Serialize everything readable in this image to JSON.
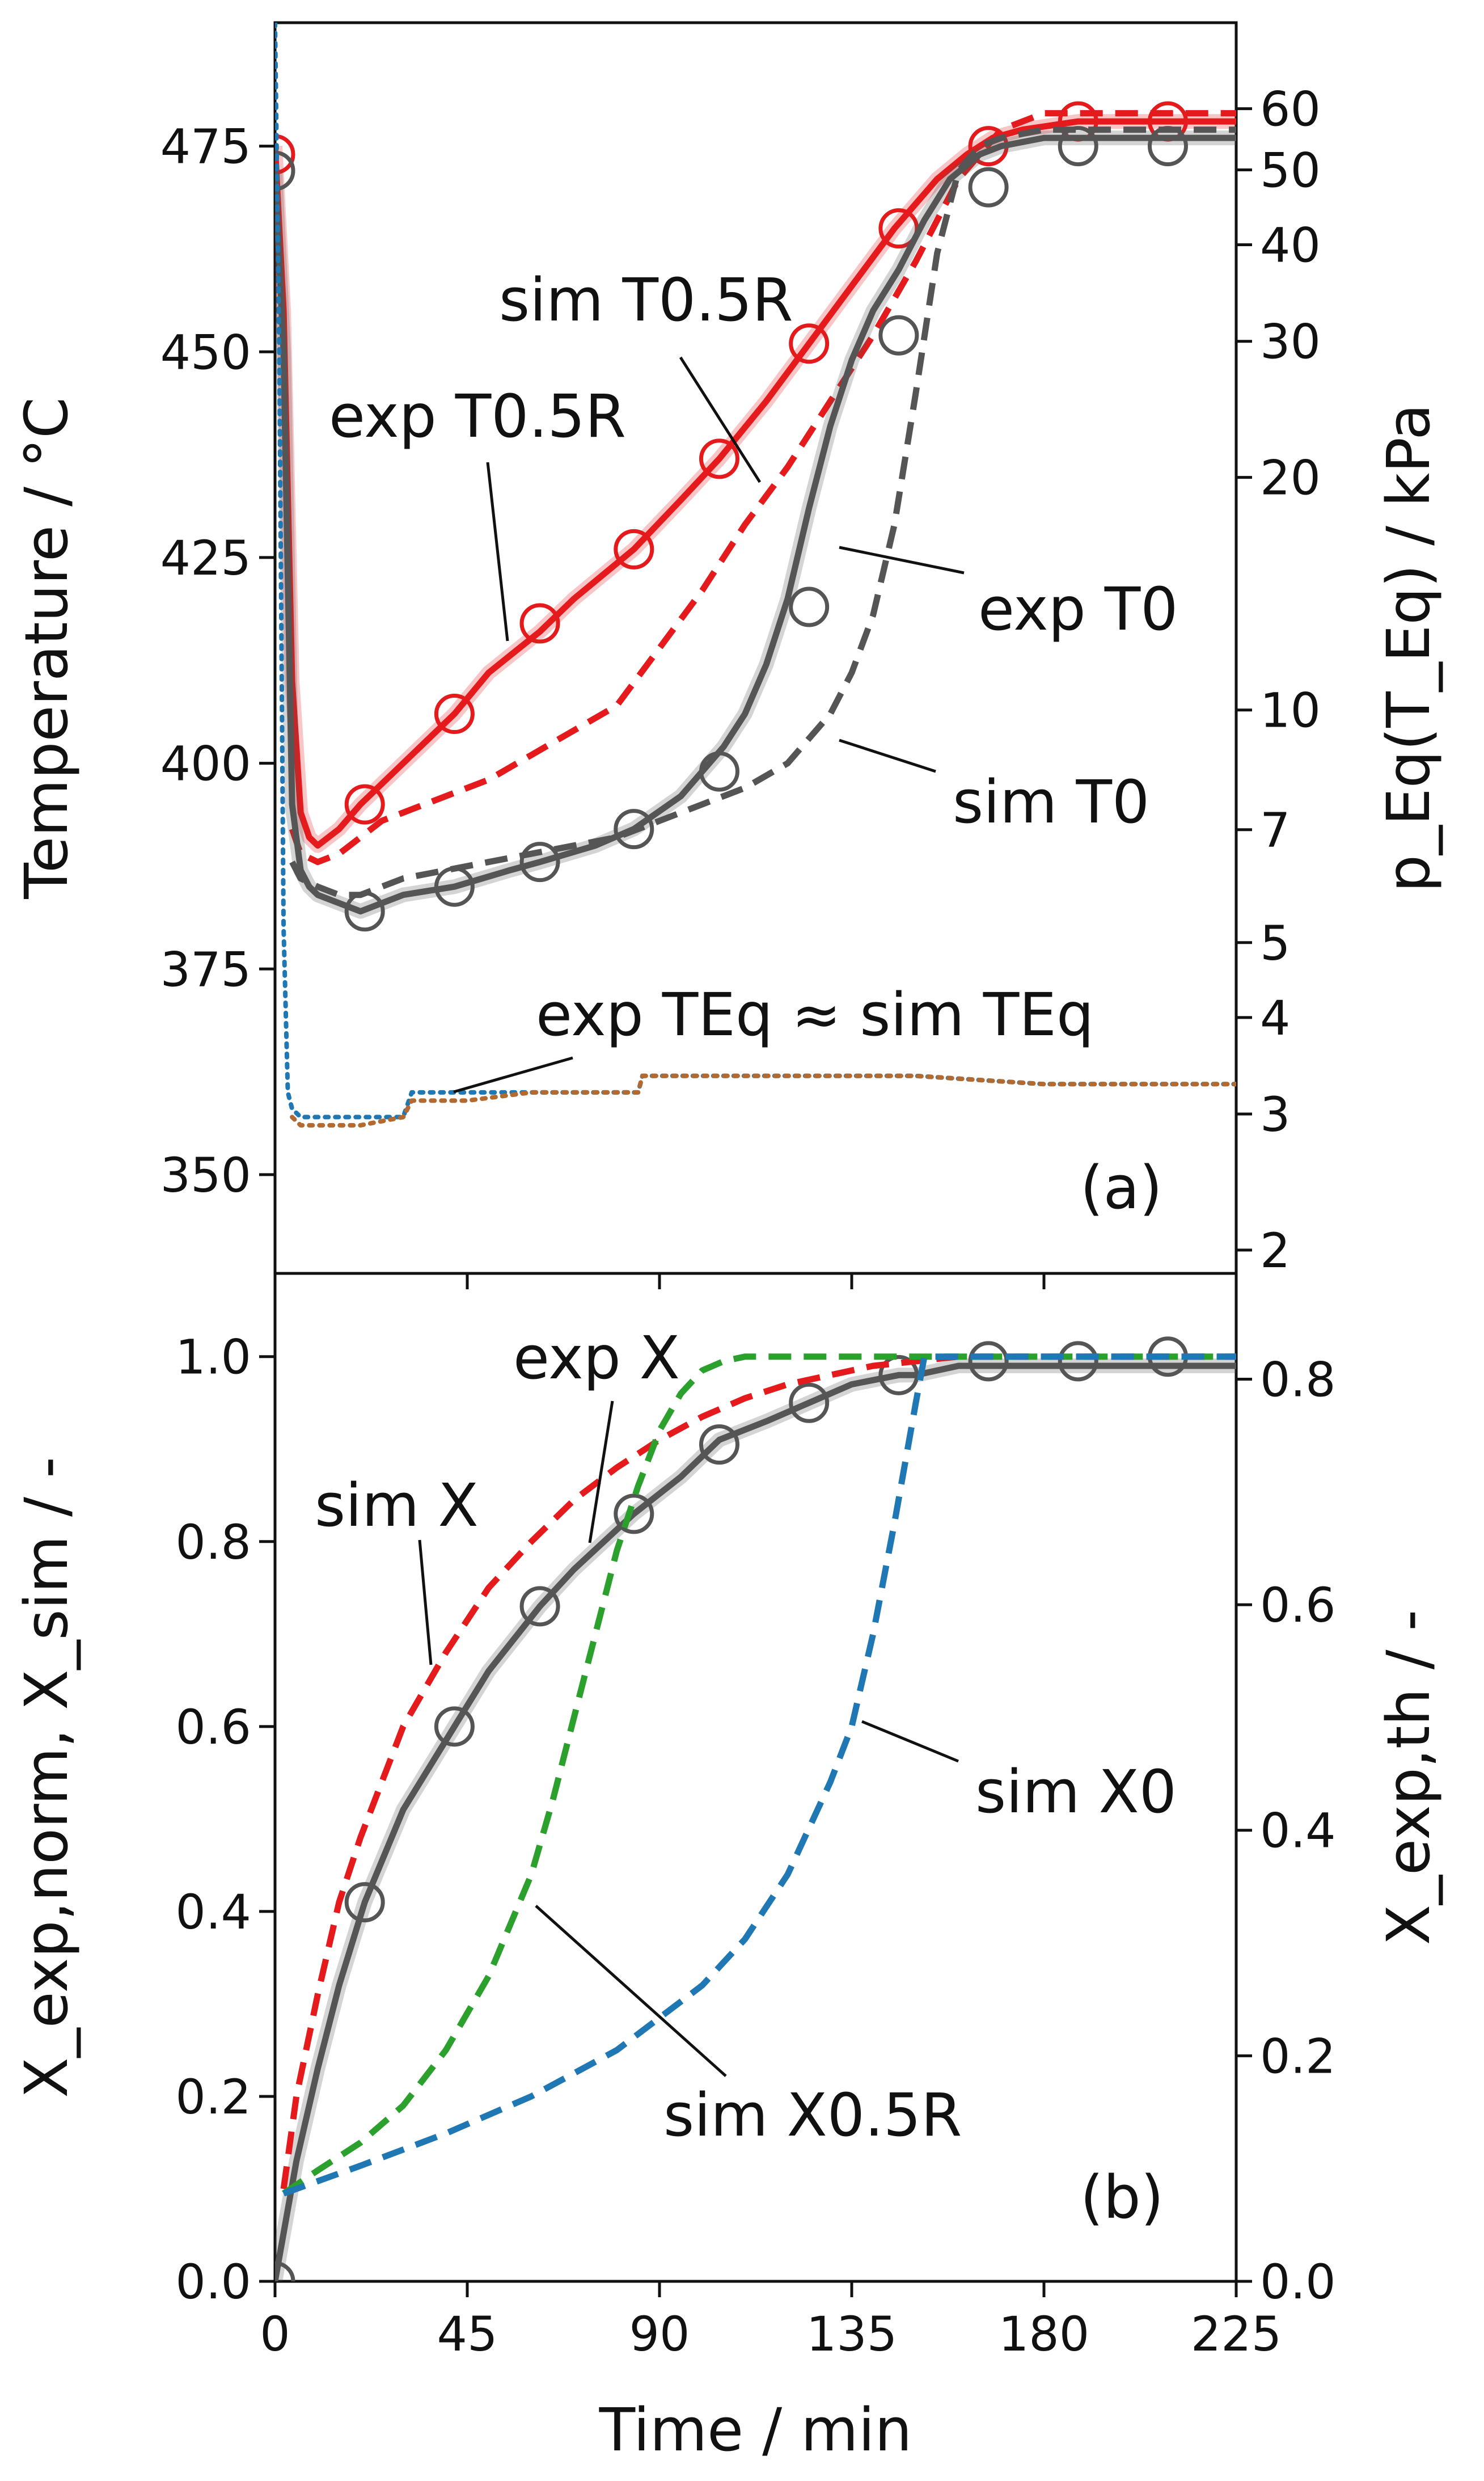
{
  "chart_data": [
    {
      "panel": "a",
      "type": "line",
      "panel_label": "(a)",
      "xlabel": "Time / min",
      "xlim": [
        0,
        225
      ],
      "xticks": [
        0,
        45,
        90,
        135,
        180,
        225
      ],
      "ylabel": "Temperature / °C",
      "ylim": [
        338,
        490
      ],
      "yticks": [
        350,
        375,
        400,
        425,
        450,
        475
      ],
      "y2label": "p_Eq(T_Eq) / kPa",
      "y2_scale": "log",
      "y2ticks": [
        2,
        3,
        4,
        5,
        7,
        10,
        20,
        30,
        40,
        50,
        60
      ],
      "annotations": {
        "sim_T05R": "sim T0.5R",
        "exp_T05R": "exp T0.5R",
        "exp_T0": "exp T0",
        "sim_T0": "sim T0",
        "teq": "exp TEq ≈ sim TEq"
      },
      "series": [
        {
          "name": "exp T0.5R",
          "style": "solid",
          "marker": "circle",
          "color": "#e41a1c",
          "x": [
            0,
            2,
            4,
            6,
            8,
            10,
            15,
            20,
            30,
            42,
            50,
            62,
            70,
            84,
            95,
            104,
            115,
            125,
            135,
            145,
            155,
            162,
            168,
            175,
            188,
            210,
            225
          ],
          "y": [
            475,
            455,
            410,
            394,
            391,
            390,
            392,
            395,
            400,
            406,
            411,
            416,
            420,
            426,
            432,
            437,
            444,
            451,
            458,
            465,
            471,
            474,
            476,
            477,
            478,
            478,
            478
          ],
          "marker_x": [
            0,
            21,
            42,
            62,
            84,
            104,
            125,
            146,
            167,
            188,
            209
          ],
          "marker_y": [
            474,
            395,
            406,
            417,
            426,
            437,
            451,
            465,
            475,
            478,
            478
          ]
        },
        {
          "name": "sim T0.5R",
          "style": "dashed",
          "color": "#e41a1c",
          "x": [
            4,
            6,
            10,
            15,
            20,
            25,
            30,
            40,
            50,
            60,
            70,
            80,
            90,
            100,
            110,
            120,
            130,
            140,
            150,
            155,
            160,
            170,
            180,
            200,
            225
          ],
          "y": [
            392,
            389,
            388,
            389,
            391,
            393,
            394,
            396,
            398,
            401,
            404,
            407,
            414,
            421,
            429,
            436,
            444,
            452,
            461,
            466,
            471,
            477,
            479,
            479,
            479
          ]
        },
        {
          "name": "exp T0",
          "style": "solid",
          "marker": "circle",
          "color": "#555555",
          "x": [
            0,
            2,
            4,
            6,
            8,
            10,
            15,
            20,
            30,
            42,
            55,
            62,
            75,
            84,
            95,
            100,
            105,
            110,
            115,
            120,
            125,
            130,
            135,
            140,
            146,
            152,
            158,
            165,
            170,
            180,
            190,
            210,
            225
          ],
          "y": [
            472,
            450,
            395,
            387,
            385,
            384,
            383,
            382,
            384,
            385,
            387,
            388,
            390,
            392,
            396,
            399,
            402,
            406,
            412,
            420,
            431,
            441,
            449,
            455,
            460,
            466,
            471,
            474,
            475,
            476,
            476,
            476,
            476
          ],
          "marker_x": [
            0,
            21,
            42,
            62,
            84,
            104,
            125,
            146,
            167,
            188,
            209
          ],
          "marker_y": [
            472,
            382,
            385,
            388,
            392,
            399,
            419,
            452,
            470,
            475,
            475
          ]
        },
        {
          "name": "sim T0",
          "style": "dashed",
          "color": "#555555",
          "x": [
            4,
            6,
            10,
            15,
            20,
            30,
            40,
            50,
            60,
            70,
            80,
            90,
            100,
            110,
            120,
            130,
            135,
            140,
            145,
            150,
            155,
            160,
            165,
            170,
            180,
            200,
            225
          ],
          "y": [
            388,
            386,
            385,
            384,
            384,
            386,
            387,
            388,
            389,
            390,
            391,
            393,
            395,
            397,
            400,
            406,
            411,
            418,
            429,
            445,
            462,
            472,
            475,
            476,
            477,
            477,
            477
          ]
        },
        {
          "name": "exp TEq",
          "style": "dotted",
          "color": "#1f77b4",
          "x": [
            0,
            1,
            2,
            3,
            4,
            6,
            10,
            20,
            30,
            32,
            45,
            60,
            85,
            86,
            100,
            120,
            150,
            180,
            210,
            225
          ],
          "y": [
            490,
            450,
            380,
            360,
            358,
            357,
            357,
            357,
            357,
            360,
            360,
            360,
            360,
            362,
            362,
            362,
            362,
            361,
            361,
            361
          ]
        },
        {
          "name": "sim TEq",
          "style": "dotted",
          "color": "#b36a30",
          "x": [
            4,
            6,
            10,
            20,
            30,
            32,
            45,
            60,
            85,
            86,
            100,
            120,
            150,
            180,
            210,
            225
          ],
          "y": [
            357,
            356,
            356,
            356,
            357,
            359,
            359,
            360,
            360,
            362,
            362,
            362,
            362,
            361,
            361,
            361
          ]
        }
      ]
    },
    {
      "panel": "b",
      "type": "line",
      "panel_label": "(b)",
      "xlabel": "Time / min",
      "xlim": [
        0,
        225
      ],
      "xticks": [
        0,
        45,
        90,
        135,
        180,
        225
      ],
      "ylabel": "X_exp,norm, X_sim / -",
      "ylim": [
        0,
        1.09
      ],
      "yticks": [
        0.0,
        0.2,
        0.4,
        0.6,
        0.8,
        1.0
      ],
      "y2label": "X_exp,th / -",
      "y2ticks": [
        0.0,
        0.2,
        0.4,
        0.6,
        0.8
      ],
      "annotations": {
        "exp_X": "exp X",
        "sim_X": "sim X",
        "sim_X0": "sim X0",
        "sim_X05R": "sim X0.5R"
      },
      "series": [
        {
          "name": "exp X",
          "style": "solid",
          "marker": "circle",
          "color": "#555555",
          "x": [
            0,
            5,
            10,
            15,
            21,
            30,
            42,
            50,
            62,
            70,
            84,
            95,
            104,
            115,
            125,
            135,
            146,
            150,
            160,
            170,
            188,
            210,
            225
          ],
          "y": [
            0,
            0.13,
            0.23,
            0.32,
            0.41,
            0.51,
            0.6,
            0.66,
            0.73,
            0.77,
            0.83,
            0.87,
            0.91,
            0.93,
            0.95,
            0.97,
            0.98,
            0.98,
            0.99,
            0.99,
            0.99,
            0.99,
            0.99
          ],
          "marker_x": [
            0,
            21,
            42,
            62,
            84,
            104,
            125,
            146,
            167,
            188,
            209
          ],
          "marker_y": [
            0,
            0.41,
            0.6,
            0.73,
            0.83,
            0.905,
            0.95,
            0.98,
            0.995,
            0.995,
            1.0
          ]
        },
        {
          "name": "sim X",
          "style": "dashed",
          "color": "#e41a1c",
          "x": [
            2,
            5,
            10,
            15,
            20,
            30,
            40,
            50,
            60,
            70,
            80,
            90,
            100,
            110,
            120,
            130,
            140,
            150,
            160,
            180,
            225
          ],
          "y": [
            0.1,
            0.2,
            0.31,
            0.41,
            0.48,
            0.6,
            0.68,
            0.75,
            0.8,
            0.845,
            0.88,
            0.91,
            0.935,
            0.955,
            0.97,
            0.98,
            0.99,
            0.995,
            1.0,
            1.0,
            1.0
          ]
        },
        {
          "name": "sim X0.5R",
          "style": "dashed",
          "color": "#2ca02c",
          "x": [
            2,
            10,
            20,
            30,
            40,
            50,
            60,
            65,
            70,
            75,
            80,
            85,
            90,
            95,
            100,
            105,
            110,
            120,
            130,
            140,
            225
          ],
          "y": [
            0.095,
            0.12,
            0.15,
            0.19,
            0.25,
            0.33,
            0.44,
            0.52,
            0.61,
            0.7,
            0.79,
            0.86,
            0.92,
            0.96,
            0.985,
            0.995,
            1.0,
            1.0,
            1.0,
            1.0,
            1.0
          ]
        },
        {
          "name": "sim X0",
          "style": "dashed",
          "color": "#1f77b4",
          "x": [
            2,
            20,
            40,
            60,
            80,
            100,
            110,
            120,
            130,
            135,
            140,
            145,
            150,
            152,
            155,
            160,
            225
          ],
          "y": [
            0.095,
            0.125,
            0.16,
            0.2,
            0.25,
            0.32,
            0.37,
            0.44,
            0.54,
            0.6,
            0.7,
            0.82,
            0.95,
            1.0,
            1.0,
            1.0,
            1.0
          ]
        }
      ]
    }
  ]
}
